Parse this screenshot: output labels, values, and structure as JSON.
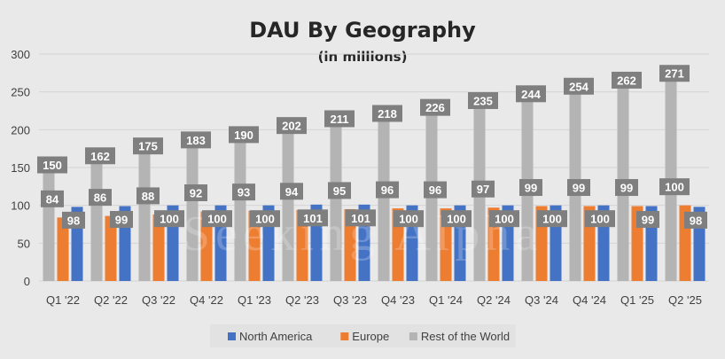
{
  "chart_data": {
    "type": "bar",
    "title": "DAU By Geography",
    "subtitle": "(in millions)",
    "xlabel": "",
    "ylabel": "",
    "categories": [
      "Q1 '22",
      "Q2 '22",
      "Q3 '22",
      "Q4 '22",
      "Q1 '23",
      "Q2 '23",
      "Q3 '23",
      "Q4 '23",
      "Q1 '24",
      "Q2 '24",
      "Q3 '24",
      "Q4 '24",
      "Q1 '25",
      "Q2 '25"
    ],
    "ylim": [
      0,
      300
    ],
    "yticks": [
      0,
      50,
      100,
      150,
      200,
      250,
      300
    ],
    "grid": true,
    "legend_position": "bottom",
    "watermark": "Seeking Alpha",
    "series": [
      {
        "name": "Rest of the World",
        "color": "#b4b4b4",
        "values": [
          150,
          162,
          175,
          183,
          190,
          202,
          211,
          218,
          226,
          235,
          244,
          254,
          262,
          271
        ]
      },
      {
        "name": "Europe",
        "color": "#ed7d31",
        "values": [
          84,
          86,
          88,
          92,
          93,
          94,
          95,
          96,
          96,
          97,
          99,
          99,
          99,
          100
        ]
      },
      {
        "name": "North America",
        "color": "#4472c4",
        "values": [
          98,
          99,
          100,
          100,
          100,
          101,
          101,
          100,
          100,
          100,
          100,
          100,
          99,
          98
        ]
      }
    ],
    "legend_order": [
      "North America",
      "Europe",
      "Rest of the World"
    ],
    "label_box_color": "#7f7f7f"
  }
}
